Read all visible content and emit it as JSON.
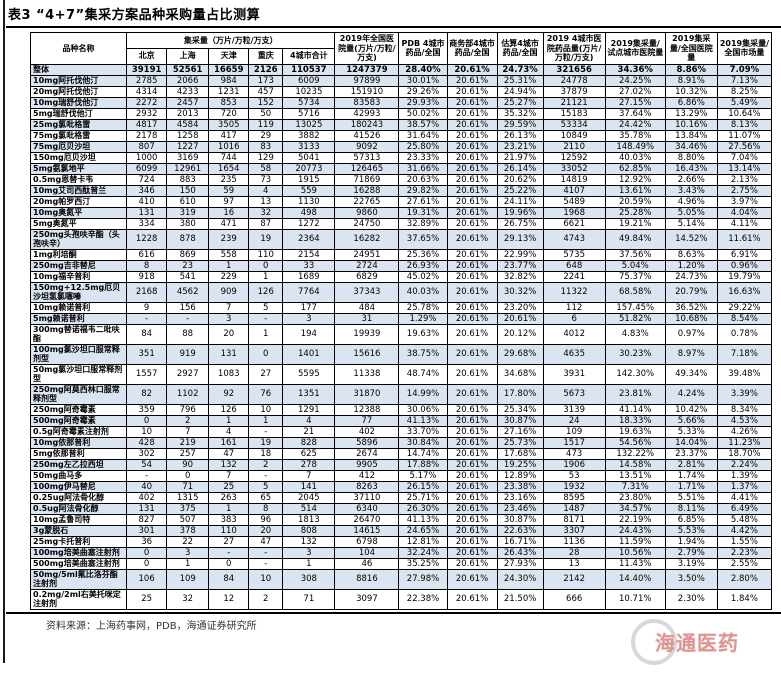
{
  "title": "表3 “4+7”集采方案品种采购量占比测算",
  "footer": {
    "source": "资料来源：上海药事网，PDB，海通证券研究所"
  },
  "watermark": {
    "label": "海通医药"
  },
  "colors": {
    "band": "#dbe5f1",
    "border": "#000000",
    "watermark_red": "#cf5b55"
  },
  "table": {
    "header": {
      "col_name": "品种名称",
      "group_procurement": "集采量（万片/万粒/万支）",
      "cities": [
        "北京",
        "上海",
        "天津",
        "重庆",
        "4城市合计"
      ],
      "col_national_2019": "2019年全国医院量(万片/万粒/万支)",
      "col_pdb": "PDB 4城市药品/全国",
      "col_mofcom": "商务部4城市药品/全国",
      "col_est": "估算4城市药品/全国",
      "col_city_hospital_2019": "2019 4城市医院药品量(万片/万粒/万支)",
      "col_ratio_pilot": "2019集采量/试点城市医院量",
      "col_ratio_national_hospital": "2019集采量/全国医院量",
      "col_ratio_national_market": "2019集采量/全国市场量"
    },
    "overall": [
      "整体",
      "39191",
      "52561",
      "16659",
      "2126",
      "110537",
      "1247379",
      "28.40%",
      "20.61%",
      "24.73%",
      "321656",
      "34.36%",
      "8.86%",
      "7.09%"
    ],
    "rows": [
      [
        "10mg阿托伐他汀",
        "2785",
        "2066",
        "984",
        "173",
        "6009",
        "97899",
        "30.01%",
        "20.61%",
        "25.31%",
        "24778",
        "24.25%",
        "8.91%",
        "7.13%"
      ],
      [
        "20mg阿托伐他汀",
        "4314",
        "4233",
        "1231",
        "457",
        "10235",
        "151910",
        "29.26%",
        "20.61%",
        "24.94%",
        "37879",
        "27.02%",
        "10.32%",
        "8.25%"
      ],
      [
        "10mg瑞舒伐他汀",
        "2272",
        "2457",
        "853",
        "152",
        "5734",
        "83583",
        "29.93%",
        "20.61%",
        "25.27%",
        "21121",
        "27.15%",
        "6.86%",
        "5.49%"
      ],
      [
        "5mg瑞舒伐他汀",
        "2932",
        "2013",
        "720",
        "50",
        "5716",
        "42993",
        "50.02%",
        "20.61%",
        "35.32%",
        "15183",
        "37.64%",
        "13.29%",
        "10.64%"
      ],
      [
        "25mg氯吡格雷",
        "4817",
        "4584",
        "3505",
        "119",
        "13025",
        "180243",
        "38.57%",
        "20.61%",
        "29.59%",
        "53334",
        "24.42%",
        "10.16%",
        "8.13%"
      ],
      [
        "75mg氯吡格雷",
        "2178",
        "1258",
        "417",
        "29",
        "3882",
        "41526",
        "31.64%",
        "20.61%",
        "26.13%",
        "10849",
        "35.78%",
        "13.84%",
        "11.07%"
      ],
      [
        "75mg厄贝沙坦",
        "807",
        "1227",
        "1016",
        "83",
        "3133",
        "9092",
        "25.80%",
        "20.61%",
        "23.21%",
        "2110",
        "148.49%",
        "34.46%",
        "27.56%"
      ],
      [
        "150mg厄贝沙坦",
        "1000",
        "3169",
        "744",
        "129",
        "5041",
        "57313",
        "23.33%",
        "20.61%",
        "21.97%",
        "12592",
        "40.03%",
        "8.80%",
        "7.04%"
      ],
      [
        "5mg氨氯地平",
        "6099",
        "12961",
        "1654",
        "58",
        "20773",
        "126465",
        "31.66%",
        "20.61%",
        "26.14%",
        "33052",
        "62.85%",
        "16.43%",
        "13.14%"
      ],
      [
        "0.5mg恩替卡韦",
        "724",
        "883",
        "235",
        "73",
        "1915",
        "71869",
        "20.63%",
        "20.61%",
        "20.62%",
        "14819",
        "12.92%",
        "2.66%",
        "2.13%"
      ],
      [
        "10mg艾司西酞普兰",
        "346",
        "150",
        "59",
        "4",
        "559",
        "16288",
        "29.82%",
        "20.61%",
        "25.22%",
        "4107",
        "13.61%",
        "3.43%",
        "2.75%"
      ],
      [
        "20mg帕罗西汀",
        "410",
        "610",
        "97",
        "13",
        "1130",
        "22765",
        "27.61%",
        "20.61%",
        "24.11%",
        "5489",
        "20.59%",
        "4.96%",
        "3.97%"
      ],
      [
        "10mg奥氮平",
        "131",
        "319",
        "16",
        "32",
        "498",
        "9860",
        "19.31%",
        "20.61%",
        "19.96%",
        "1968",
        "25.28%",
        "5.05%",
        "4.04%"
      ],
      [
        "5mg奥氮平",
        "334",
        "380",
        "471",
        "87",
        "1272",
        "24750",
        "32.89%",
        "20.61%",
        "26.75%",
        "6621",
        "19.21%",
        "5.14%",
        "4.11%"
      ],
      [
        "250mg头孢呋辛酯（头孢呋辛）",
        "1228",
        "878",
        "239",
        "19",
        "2364",
        "16282",
        "37.65%",
        "20.61%",
        "29.13%",
        "4743",
        "49.84%",
        "14.52%",
        "11.61%"
      ],
      [
        "1mg利培酮",
        "616",
        "869",
        "558",
        "110",
        "2154",
        "24951",
        "25.36%",
        "20.61%",
        "22.99%",
        "5735",
        "37.56%",
        "8.63%",
        "6.91%"
      ],
      [
        "250mg吉非替尼",
        "8",
        "23",
        "1",
        "0",
        "33",
        "2724",
        "26.93%",
        "20.61%",
        "23.77%",
        "648",
        "5.04%",
        "1.20%",
        "0.96%"
      ],
      [
        "10mg福辛普利",
        "918",
        "541",
        "229",
        "1",
        "1689",
        "6829",
        "45.02%",
        "20.61%",
        "32.82%",
        "2241",
        "75.37%",
        "24.73%",
        "19.79%"
      ],
      [
        "150mg+12.5mg厄贝沙坦氢氯噻嗪",
        "2168",
        "4562",
        "909",
        "126",
        "7764",
        "37343",
        "40.03%",
        "20.61%",
        "30.32%",
        "11322",
        "68.58%",
        "20.79%",
        "16.63%"
      ],
      [
        "10mg赖诺普利",
        "9",
        "156",
        "7",
        "5",
        "177",
        "484",
        "25.78%",
        "20.61%",
        "23.20%",
        "112",
        "157.45%",
        "36.52%",
        "29.22%"
      ],
      [
        "5mg赖诺普利",
        "-",
        "-",
        "3",
        "-",
        "3",
        "31",
        "1.29%",
        "20.61%",
        "20.61%",
        "6",
        "51.82%",
        "10.68%",
        "8.54%"
      ],
      [
        "300mg替诺福韦二吡呋酯",
        "84",
        "88",
        "20",
        "1",
        "194",
        "19939",
        "19.63%",
        "20.61%",
        "20.12%",
        "4012",
        "4.83%",
        "0.97%",
        "0.78%"
      ],
      [
        "100mg氯沙坦口服常释剂型",
        "351",
        "919",
        "131",
        "0",
        "1401",
        "15616",
        "38.75%",
        "20.61%",
        "29.68%",
        "4635",
        "30.23%",
        "8.97%",
        "7.18%"
      ],
      [
        "50mg氯沙坦口服常释剂型",
        "1557",
        "2927",
        "1083",
        "27",
        "5595",
        "11338",
        "48.74%",
        "20.61%",
        "34.68%",
        "3931",
        "142.30%",
        "49.34%",
        "39.48%"
      ],
      [
        "250mg阿莫西林口服常释剂型",
        "82",
        "1102",
        "92",
        "76",
        "1351",
        "31870",
        "14.99%",
        "20.61%",
        "17.80%",
        "5673",
        "23.81%",
        "4.24%",
        "3.39%"
      ],
      [
        "250mg阿奇霉素",
        "359",
        "796",
        "126",
        "10",
        "1291",
        "12388",
        "30.06%",
        "20.61%",
        "25.34%",
        "3139",
        "41.14%",
        "10.42%",
        "8.34%"
      ],
      [
        "500mg阿奇霉素",
        "0",
        "2",
        "1",
        "1",
        "4",
        "77",
        "41.13%",
        "20.61%",
        "30.87%",
        "24",
        "18.33%",
        "5.66%",
        "4.53%"
      ],
      [
        "0.5g阿奇霉素注射剂",
        "10",
        "7",
        "4",
        "-",
        "21",
        "402",
        "33.70%",
        "20.61%",
        "27.16%",
        "109",
        "19.63%",
        "5.33%",
        "4.26%"
      ],
      [
        "10mg依那普利",
        "428",
        "219",
        "161",
        "19",
        "828",
        "5896",
        "30.84%",
        "20.61%",
        "25.73%",
        "1517",
        "54.56%",
        "14.04%",
        "11.23%"
      ],
      [
        "5mg依那普利",
        "302",
        "257",
        "47",
        "18",
        "625",
        "2674",
        "14.74%",
        "20.61%",
        "17.68%",
        "473",
        "132.22%",
        "23.37%",
        "18.70%"
      ],
      [
        "250mg左乙拉西坦",
        "54",
        "90",
        "132",
        "2",
        "278",
        "9905",
        "17.88%",
        "20.61%",
        "19.25%",
        "1906",
        "14.58%",
        "2.81%",
        "2.24%"
      ],
      [
        "50mg曲马多",
        "-",
        "0",
        "7",
        "-",
        "7",
        "412",
        "5.17%",
        "20.61%",
        "12.89%",
        "53",
        "13.51%",
        "1.74%",
        "1.39%"
      ],
      [
        "100mg伊马替尼",
        "40",
        "71",
        "25",
        "5",
        "141",
        "8263",
        "26.15%",
        "20.61%",
        "23.38%",
        "1932",
        "7.31%",
        "1.71%",
        "1.37%"
      ],
      [
        "0.25ug阿法骨化醇",
        "402",
        "1315",
        "263",
        "65",
        "2045",
        "37110",
        "25.71%",
        "20.61%",
        "23.16%",
        "8595",
        "23.80%",
        "5.51%",
        "4.41%"
      ],
      [
        "0.5ug阿法骨化醇",
        "131",
        "375",
        "1",
        "8",
        "514",
        "6340",
        "26.30%",
        "20.61%",
        "23.46%",
        "1487",
        "34.57%",
        "8.11%",
        "6.49%"
      ],
      [
        "10mg孟鲁司特",
        "827",
        "507",
        "383",
        "96",
        "1813",
        "26470",
        "41.13%",
        "20.61%",
        "30.87%",
        "8171",
        "22.19%",
        "6.85%",
        "5.48%"
      ],
      [
        "3g蒙脱石",
        "301",
        "378",
        "110",
        "20",
        "808",
        "14615",
        "24.65%",
        "20.61%",
        "22.63%",
        "3307",
        "24.43%",
        "5.53%",
        "4.42%"
      ],
      [
        "25mg卡托普利",
        "36",
        "22",
        "27",
        "47",
        "132",
        "6798",
        "12.81%",
        "20.61%",
        "16.71%",
        "1136",
        "11.59%",
        "1.94%",
        "1.55%"
      ],
      [
        "100mg培美曲塞注射剂",
        "0",
        "3",
        "-",
        "-",
        "3",
        "104",
        "32.24%",
        "20.61%",
        "26.43%",
        "28",
        "10.56%",
        "2.79%",
        "2.23%"
      ],
      [
        "500mg培美曲塞注射剂",
        "0",
        "1",
        "0",
        "-",
        "1",
        "46",
        "35.25%",
        "20.61%",
        "27.93%",
        "13",
        "11.43%",
        "3.19%",
        "2.55%"
      ],
      [
        "50mg/5ml氟比洛芬酯注射剂",
        "106",
        "109",
        "84",
        "10",
        "308",
        "8816",
        "27.98%",
        "20.61%",
        "24.30%",
        "2142",
        "14.40%",
        "3.50%",
        "2.80%"
      ],
      [
        "0.2mg/2ml右美托咪定注射剂",
        "25",
        "32",
        "12",
        "2",
        "71",
        "3097",
        "22.38%",
        "20.61%",
        "21.50%",
        "666",
        "10.71%",
        "2.30%",
        "1.84%"
      ]
    ]
  }
}
